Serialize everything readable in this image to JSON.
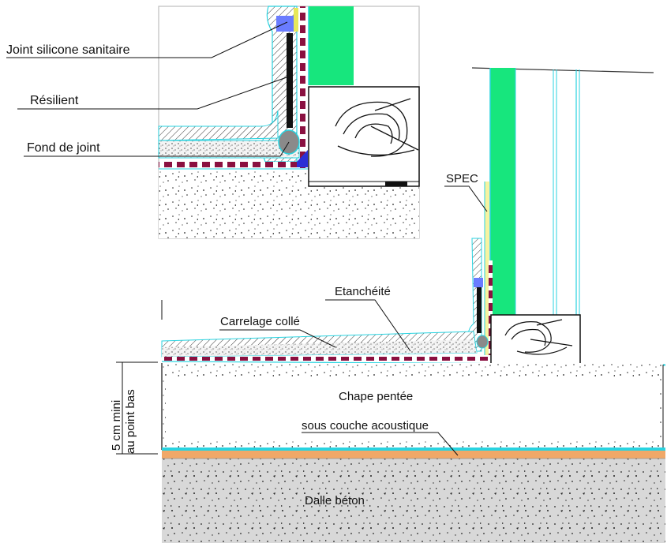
{
  "labels": {
    "joint_silicone": "Joint silicone sanitaire",
    "resilient": "Résilient",
    "fond_de_joint": "Fond de joint",
    "spec": "SPEC",
    "etancheite": "Etanchéité",
    "carrelage": "Carrelage collé",
    "chape": "Chape pentée",
    "sous_couche": "sous couche acoustique",
    "dalle": "Dalle béton",
    "dim_line1": "5 cm mini",
    "dim_line2": "au point bas"
  },
  "colors": {
    "green_panel": "#17e67d",
    "cyan_line": "#29d3e0",
    "membrane_maroon": "#8a1040",
    "membrane_blue": "#2b2fd6",
    "orange_layer": "#f0a868",
    "slab_fill": "#d6d6d6",
    "silicone_blue": "#6a7cff"
  }
}
